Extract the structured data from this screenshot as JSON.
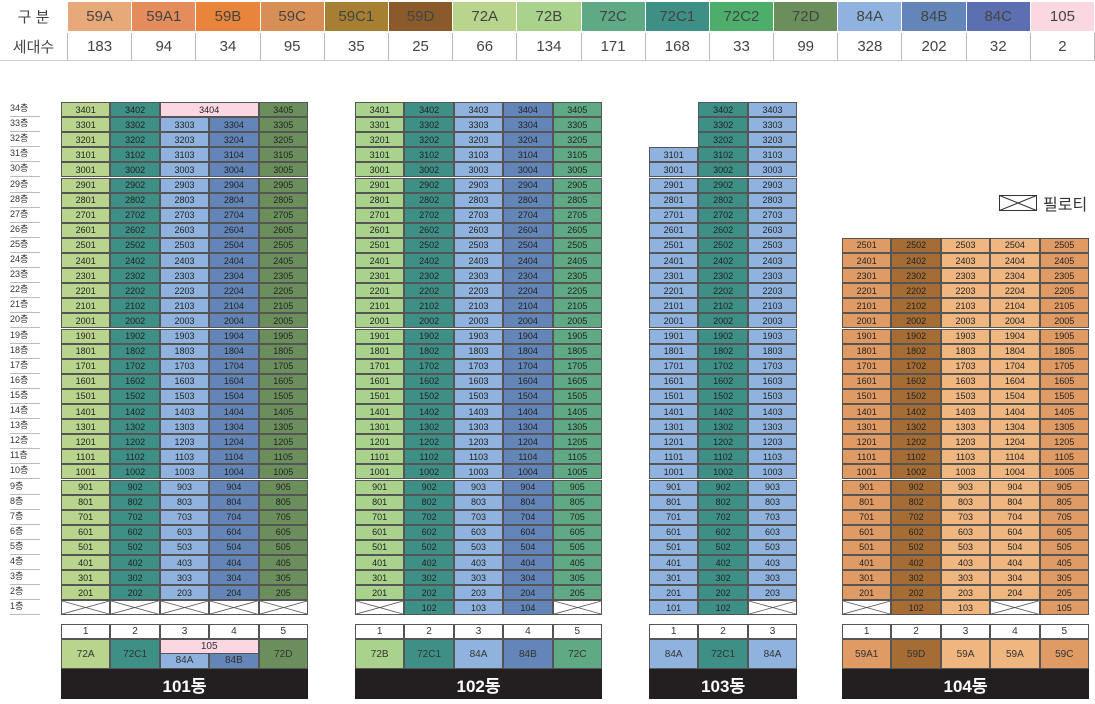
{
  "legend": {
    "type_header": "구 분",
    "count_header": "세대수",
    "types": [
      {
        "name": "59A",
        "count": "183",
        "color": "#e7a97a"
      },
      {
        "name": "59A1",
        "count": "94",
        "color": "#e48c5c"
      },
      {
        "name": "59B",
        "count": "34",
        "color": "#e8843c"
      },
      {
        "name": "59C",
        "count": "95",
        "color": "#d88f55"
      },
      {
        "name": "59C1",
        "count": "35",
        "color": "#a67f32"
      },
      {
        "name": "59D",
        "count": "25",
        "color": "#8b5a2b"
      },
      {
        "name": "72A",
        "count": "66",
        "color": "#b9d48c"
      },
      {
        "name": "72B",
        "count": "134",
        "color": "#a9d38d"
      },
      {
        "name": "72C",
        "count": "171",
        "color": "#5fa984"
      },
      {
        "name": "72C1",
        "count": "168",
        "color": "#3e8f85"
      },
      {
        "name": "72C2",
        "count": "33",
        "color": "#4cae6a"
      },
      {
        "name": "72D",
        "count": "99",
        "color": "#6b8f5c"
      },
      {
        "name": "84A",
        "count": "328",
        "color": "#8fb3de"
      },
      {
        "name": "84B",
        "count": "202",
        "color": "#6385b7"
      },
      {
        "name": "84C",
        "count": "32",
        "color": "#5c6fb0"
      },
      {
        "name": "105",
        "count": "2",
        "color": "#fbd7e1"
      }
    ]
  },
  "piloti_label": "필로티",
  "floors": [
    "34층",
    "33층",
    "32층",
    "31층",
    "30층",
    "29층",
    "28층",
    "27층",
    "26층",
    "25층",
    "24층",
    "23층",
    "22층",
    "21층",
    "20층",
    "19층",
    "18층",
    "17층",
    "16층",
    "15층",
    "14층",
    "13층",
    "12층",
    "11층",
    "10층",
    "9층",
    "8층",
    "7층",
    "6층",
    "5층",
    "4층",
    "3층",
    "2층",
    "1층"
  ],
  "buildings": [
    {
      "name": "101동",
      "top_floor": 34,
      "lines": [
        "1",
        "2",
        "3",
        "4",
        "5"
      ],
      "line_types": [
        "72A",
        "72C1",
        "84A",
        "84B",
        "72D"
      ],
      "line_colors": [
        "#b9d48c",
        "#3e8f85",
        "#8fb3de",
        "#6385b7",
        "#6b8f5c"
      ],
      "line_starts": [
        2,
        2,
        2,
        2,
        2
      ],
      "first_floor": [
        "X",
        "X",
        "X",
        "X",
        "X"
      ],
      "top_special": {
        "label": "3404",
        "color": "#fbd7e1",
        "span": [
          2,
          3
        ],
        "floor": 34
      },
      "penthouse_label": "105",
      "missing_top": []
    },
    {
      "name": "102동",
      "top_floor": 34,
      "lines": [
        "1",
        "2",
        "3",
        "4",
        "5"
      ],
      "line_types": [
        "72B",
        "72C1",
        "84A",
        "84B",
        "72C"
      ],
      "line_colors": [
        "#a9d38d",
        "#3e8f85",
        "#8fb3de",
        "#6385b7",
        "#5fa984"
      ],
      "line_starts": [
        2,
        1,
        1,
        1,
        2
      ],
      "first_floor": [
        "X",
        "102",
        "103",
        "104",
        "X"
      ],
      "missing_top": []
    },
    {
      "name": "103동",
      "top_floor": 34,
      "lines": [
        "1",
        "2",
        "3"
      ],
      "line_types": [
        "84A",
        "72C1",
        "84A"
      ],
      "line_colors": [
        "#8fb3de",
        "#3e8f85",
        "#8fb3de"
      ],
      "line_starts": [
        1,
        1,
        2
      ],
      "first_floor": [
        "101",
        "102",
        "X"
      ],
      "line_tops": [
        31,
        34,
        34
      ]
    },
    {
      "name": "104동",
      "top_floor": 25,
      "lines": [
        "1",
        "2",
        "3",
        "4",
        "5"
      ],
      "line_types": [
        "59A1",
        "59D",
        "59A",
        "59A",
        "59C"
      ],
      "line_colors": [
        "#e09a63",
        "#a56c33",
        "#f0b67f",
        "#f0b67f",
        "#e09a63"
      ],
      "line_starts": [
        2,
        1,
        1,
        2,
        1
      ],
      "first_floor": [
        "X",
        "102",
        "103",
        "X",
        "105"
      ],
      "line_tops": [
        25,
        25,
        25,
        25,
        25
      ]
    }
  ]
}
